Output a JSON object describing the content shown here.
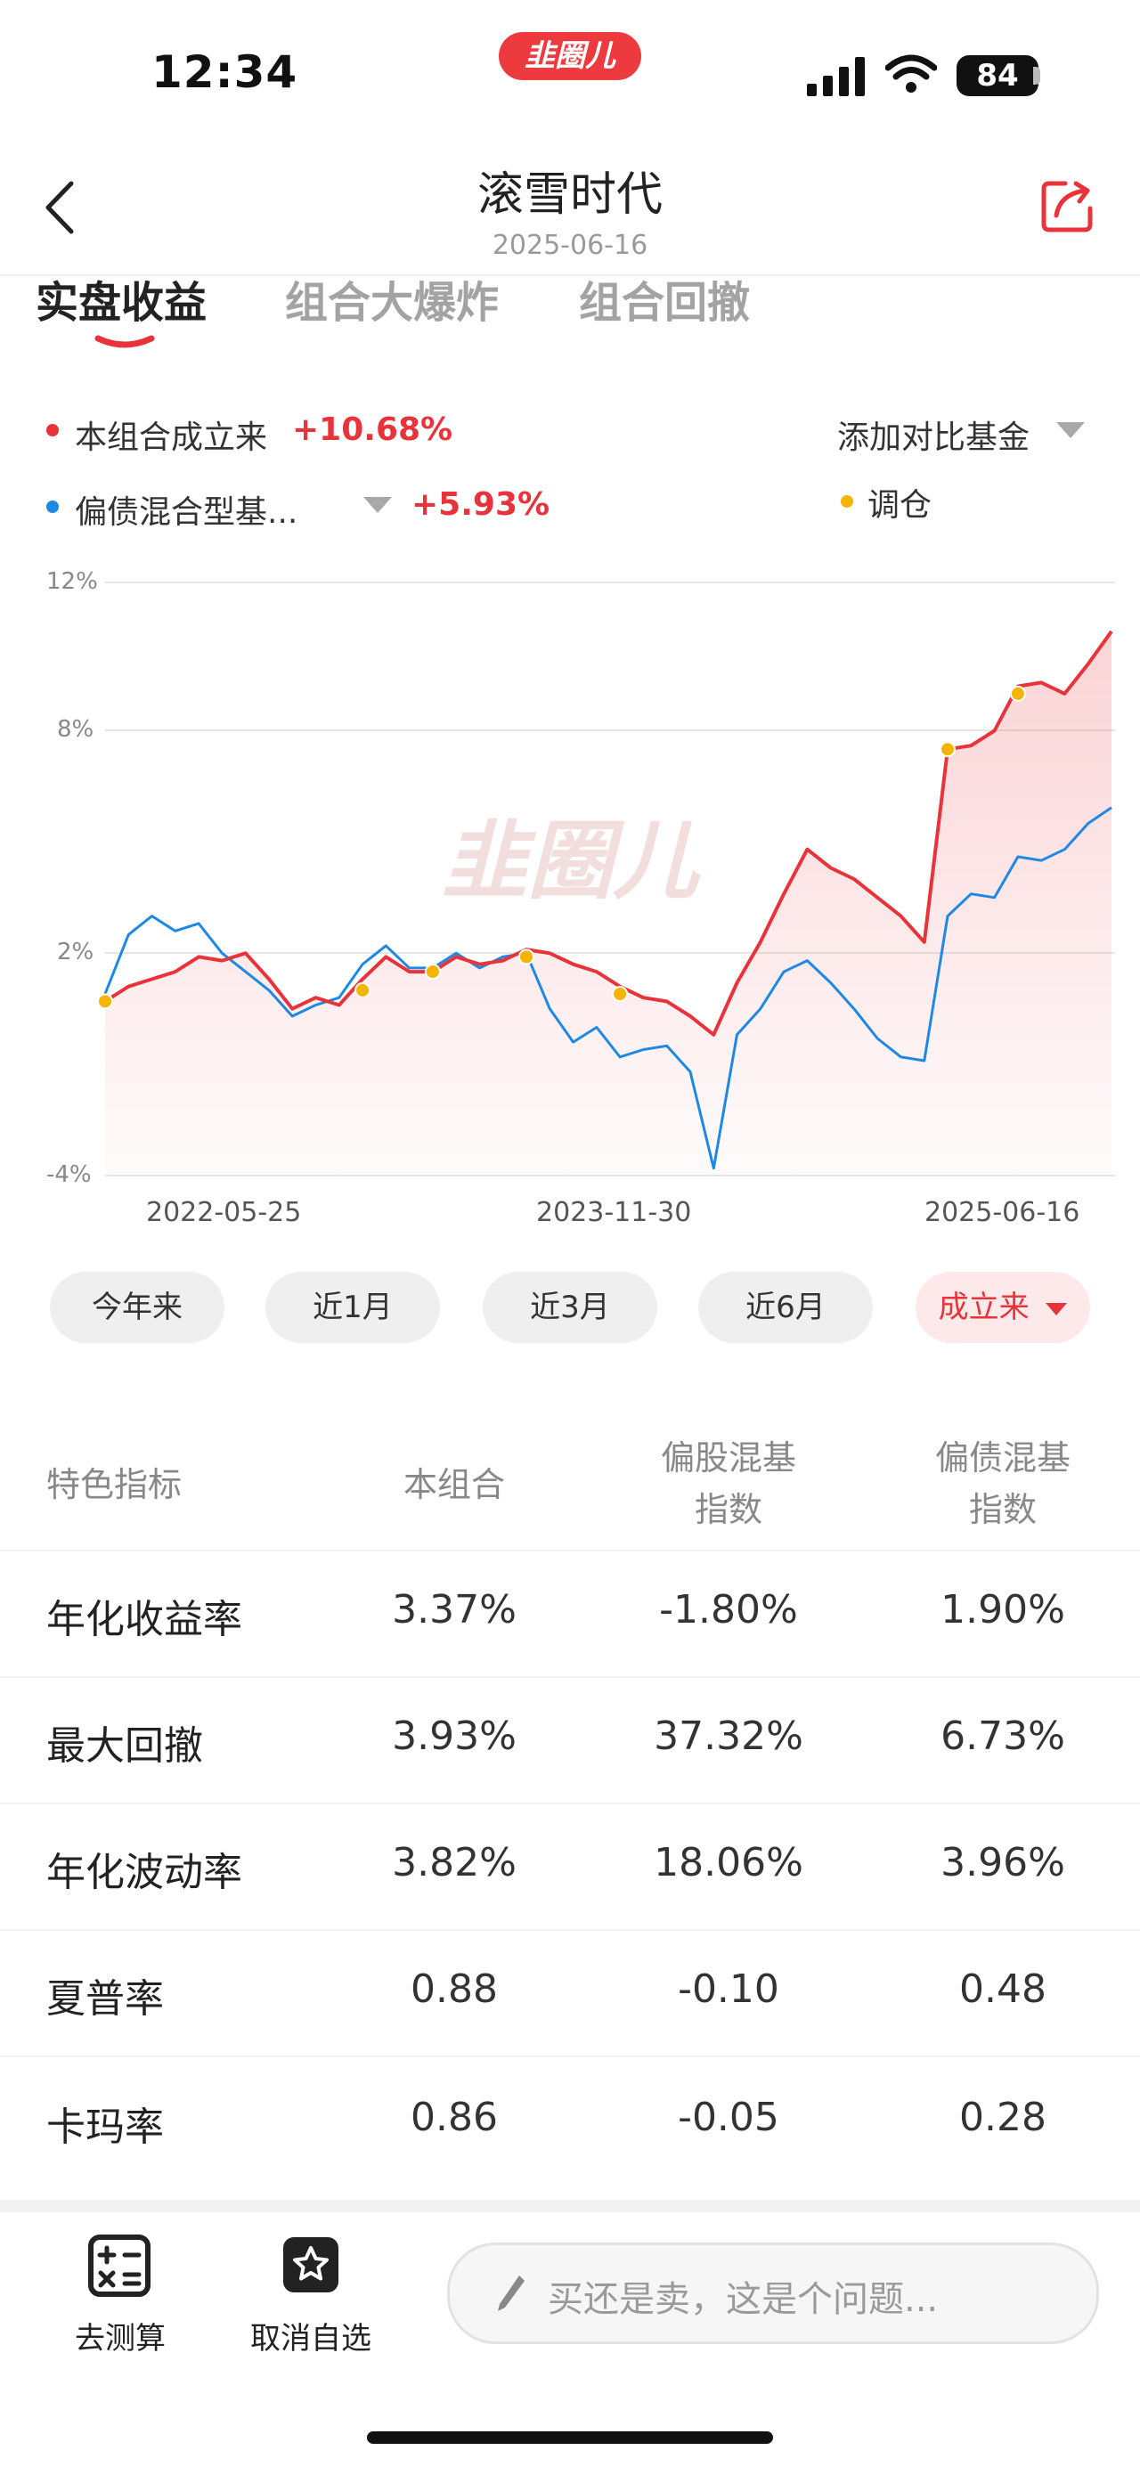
{
  "status_bar": {
    "time": "12:34",
    "brand": "韭圈儿",
    "battery": "84"
  },
  "header": {
    "title": "滚雪时代",
    "subtitle": "2025-06-16"
  },
  "tabs": [
    {
      "label": "实盘收益",
      "active": true
    },
    {
      "label": "组合大爆炸",
      "active": false
    },
    {
      "label": "组合回撤",
      "active": false
    }
  ],
  "legend": {
    "series1": {
      "label": "本组合成立来",
      "value": "+10.68%"
    },
    "series2": {
      "label": "偏债混合型基...",
      "value": "+5.93%"
    },
    "compare": "添加对比基金",
    "rebalance": "调仓"
  },
  "colors": {
    "accent": "#e8333b",
    "benchmark": "#1e88e5",
    "rebalance_dot": "#f5b400"
  },
  "watermark": "韭圈儿",
  "chart_data": {
    "type": "line",
    "x_tick_labels": [
      "2022-05-25",
      "2023-11-30",
      "2025-06-16"
    ],
    "y_tick_labels": [
      "12%",
      "8%",
      "2%",
      "-4%"
    ],
    "ylim": [
      -4,
      12
    ],
    "grid": true,
    "series": [
      {
        "name": "本组合成立来",
        "color": "#e8333b",
        "area_fill": true,
        "x": [
          "2021-11",
          "2021-12",
          "2022-01",
          "2022-02",
          "2022-03",
          "2022-04",
          "2022-05",
          "2022-06",
          "2022-07",
          "2022-08",
          "2022-09",
          "2022-10",
          "2022-11",
          "2022-12",
          "2023-01",
          "2023-02",
          "2023-03",
          "2023-04",
          "2023-05",
          "2023-06",
          "2023-07",
          "2023-08",
          "2023-09",
          "2023-10",
          "2023-11",
          "2023-12",
          "2024-01",
          "2024-02",
          "2024-03",
          "2024-04",
          "2024-05",
          "2024-06",
          "2024-07",
          "2024-08",
          "2024-09",
          "2024-10",
          "2024-11",
          "2024-12",
          "2025-01",
          "2025-02",
          "2025-03",
          "2025-04",
          "2025-05",
          "2025-06"
        ],
        "values": [
          0.7,
          1.1,
          1.3,
          1.5,
          1.9,
          1.8,
          2.0,
          1.3,
          0.5,
          0.8,
          0.6,
          1.3,
          1.9,
          1.5,
          1.5,
          1.9,
          1.7,
          1.8,
          2.1,
          2.0,
          1.7,
          1.5,
          1.1,
          0.8,
          0.7,
          0.3,
          -0.2,
          1.2,
          2.3,
          3.6,
          4.8,
          4.3,
          4.0,
          3.5,
          3.0,
          2.3,
          7.5,
          7.6,
          8.0,
          9.2,
          9.3,
          9.0,
          9.8,
          10.68
        ]
      },
      {
        "name": "偏债混合型基...",
        "color": "#1e88e5",
        "area_fill": false,
        "x": [
          "2021-11",
          "2021-12",
          "2022-01",
          "2022-02",
          "2022-03",
          "2022-04",
          "2022-05",
          "2022-06",
          "2022-07",
          "2022-08",
          "2022-09",
          "2022-10",
          "2022-11",
          "2022-12",
          "2023-01",
          "2023-02",
          "2023-03",
          "2023-04",
          "2023-05",
          "2023-06",
          "2023-07",
          "2023-08",
          "2023-09",
          "2023-10",
          "2023-11",
          "2023-12",
          "2024-01",
          "2024-02",
          "2024-03",
          "2024-04",
          "2024-05",
          "2024-06",
          "2024-07",
          "2024-08",
          "2024-09",
          "2024-10",
          "2024-11",
          "2024-12",
          "2025-01",
          "2025-02",
          "2025-03",
          "2025-04",
          "2025-05",
          "2025-06"
        ],
        "values": [
          0.9,
          2.5,
          3.0,
          2.6,
          2.8,
          2.0,
          1.5,
          1.0,
          0.3,
          0.6,
          0.8,
          1.7,
          2.2,
          1.6,
          1.6,
          2.0,
          1.6,
          1.9,
          2.0,
          0.5,
          -0.4,
          0.0,
          -0.8,
          -0.6,
          -0.5,
          -1.2,
          -3.8,
          -0.2,
          0.5,
          1.5,
          1.8,
          1.2,
          0.5,
          -0.3,
          -0.8,
          -0.9,
          3.0,
          3.6,
          3.5,
          4.6,
          4.5,
          4.8,
          5.5,
          5.93
        ]
      }
    ],
    "rebalance_points": [
      {
        "x": "2021-11",
        "y": 0.7
      },
      {
        "x": "2022-10",
        "y": 1.0
      },
      {
        "x": "2023-01",
        "y": 1.5
      },
      {
        "x": "2023-05",
        "y": 1.9
      },
      {
        "x": "2023-09",
        "y": 0.9
      },
      {
        "x": "2024-11",
        "y": 7.5
      },
      {
        "x": "2025-02",
        "y": 9.0
      }
    ]
  },
  "time_ranges": [
    {
      "label": "今年来",
      "active": false
    },
    {
      "label": "近1月",
      "active": false
    },
    {
      "label": "近3月",
      "active": false
    },
    {
      "label": "近6月",
      "active": false
    },
    {
      "label": "成立来",
      "active": true
    }
  ],
  "metrics_table": {
    "headers": [
      "特色指标",
      "本组合",
      "偏股混基\n指数",
      "偏债混基\n指数"
    ],
    "rows": [
      {
        "label": "年化收益率",
        "values": [
          "3.37%",
          "-1.80%",
          "1.90%"
        ]
      },
      {
        "label": "最大回撤",
        "values": [
          "3.93%",
          "37.32%",
          "6.73%"
        ]
      },
      {
        "label": "年化波动率",
        "values": [
          "3.82%",
          "18.06%",
          "3.96%"
        ]
      },
      {
        "label": "夏普率",
        "values": [
          "0.88",
          "-0.10",
          "0.48"
        ]
      },
      {
        "label": "卡玛率",
        "values": [
          "0.86",
          "-0.05",
          "0.28"
        ]
      }
    ]
  },
  "bottom_bar": {
    "calc_label": "去测算",
    "unfav_label": "取消自选",
    "input_placeholder": "买还是卖，这是个问题..."
  }
}
